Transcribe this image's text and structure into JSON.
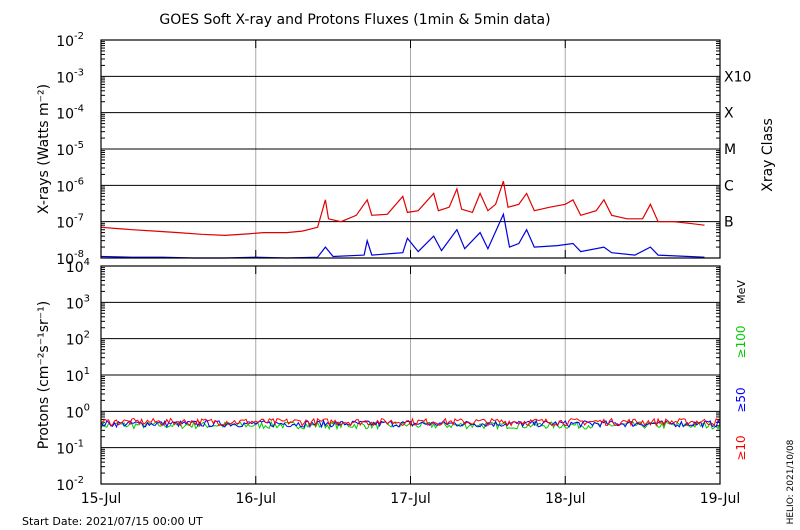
{
  "title": "GOES Soft X-ray and Protons Fluxes   (1min & 5min data)",
  "start_date": "Start Date: 2021/07/15 00:00 UT",
  "helio_stamp": "HELIO: 2021/10/08",
  "colors": {
    "xray_long": "#e00000",
    "xray_short": "#0000dd",
    "p10": "#ff0000",
    "p50": "#0000ff",
    "p100": "#00cc00",
    "grid_day": "#aaaaaa",
    "axis": "#000000"
  },
  "chart_data": [
    {
      "type": "line",
      "panel": "xray",
      "ylabel": "X-rays (Watts m⁻²)",
      "yscale": "log",
      "ylim": [
        1e-08,
        0.01
      ],
      "yticks": [
        {
          "exp": -8
        },
        {
          "exp": -7
        },
        {
          "exp": -6
        },
        {
          "exp": -5
        },
        {
          "exp": -4
        },
        {
          "exp": -3
        },
        {
          "exp": -2
        }
      ],
      "x_ticks": [
        "15-Jul",
        "16-Jul",
        "17-Jul",
        "18-Jul",
        "19-Jul"
      ],
      "xlim_days": [
        0,
        4
      ],
      "right_axis_title": "Xray Class",
      "class_labels": [
        {
          "label": "B",
          "value": 1e-07
        },
        {
          "label": "C",
          "value": 1e-06
        },
        {
          "label": "M",
          "value": 1e-05
        },
        {
          "label": "X",
          "value": 0.0001
        },
        {
          "label": "X10",
          "value": 0.001
        }
      ],
      "series": [
        {
          "color_key": "xray_long",
          "points": [
            [
              0.0,
              7e-08
            ],
            [
              0.1,
              6.5e-08
            ],
            [
              0.2,
              6e-08
            ],
            [
              0.35,
              5.5e-08
            ],
            [
              0.5,
              5e-08
            ],
            [
              0.65,
              4.5e-08
            ],
            [
              0.8,
              4.2e-08
            ],
            [
              0.95,
              4.6e-08
            ],
            [
              1.05,
              5e-08
            ],
            [
              1.2,
              5e-08
            ],
            [
              1.3,
              5.5e-08
            ],
            [
              1.4,
              7e-08
            ],
            [
              1.45,
              4e-07
            ],
            [
              1.47,
              1.2e-07
            ],
            [
              1.55,
              1e-07
            ],
            [
              1.65,
              1.5e-07
            ],
            [
              1.72,
              4e-07
            ],
            [
              1.75,
              1.5e-07
            ],
            [
              1.85,
              1.6e-07
            ],
            [
              1.95,
              5e-07
            ],
            [
              1.98,
              1.8e-07
            ],
            [
              2.05,
              2e-07
            ],
            [
              2.15,
              6e-07
            ],
            [
              2.18,
              2e-07
            ],
            [
              2.25,
              2.5e-07
            ],
            [
              2.3,
              8e-07
            ],
            [
              2.33,
              2.2e-07
            ],
            [
              2.4,
              1.8e-07
            ],
            [
              2.45,
              6e-07
            ],
            [
              2.5,
              2e-07
            ],
            [
              2.55,
              3e-07
            ],
            [
              2.6,
              1.3e-06
            ],
            [
              2.63,
              2.5e-07
            ],
            [
              2.7,
              3e-07
            ],
            [
              2.75,
              6e-07
            ],
            [
              2.8,
              2e-07
            ],
            [
              2.9,
              2.5e-07
            ],
            [
              3.0,
              3e-07
            ],
            [
              3.05,
              4e-07
            ],
            [
              3.1,
              1.5e-07
            ],
            [
              3.2,
              2e-07
            ],
            [
              3.25,
              4e-07
            ],
            [
              3.3,
              1.5e-07
            ],
            [
              3.4,
              1.2e-07
            ],
            [
              3.5,
              1.2e-07
            ],
            [
              3.55,
              3e-07
            ],
            [
              3.6,
              1e-07
            ],
            [
              3.7,
              1e-07
            ],
            [
              3.8,
              9e-08
            ],
            [
              3.9,
              8e-08
            ]
          ]
        },
        {
          "color_key": "xray_short",
          "points": [
            [
              0.0,
              1.1e-08
            ],
            [
              0.2,
              1.05e-08
            ],
            [
              0.4,
              1.05e-08
            ],
            [
              0.6,
              1e-08
            ],
            [
              0.8,
              1e-08
            ],
            [
              1.0,
              1.05e-08
            ],
            [
              1.2,
              1e-08
            ],
            [
              1.4,
              1.05e-08
            ],
            [
              1.45,
              2e-08
            ],
            [
              1.5,
              1.1e-08
            ],
            [
              1.7,
              1.2e-08
            ],
            [
              1.72,
              3e-08
            ],
            [
              1.75,
              1.2e-08
            ],
            [
              1.95,
              1.4e-08
            ],
            [
              1.98,
              3.5e-08
            ],
            [
              2.05,
              1.5e-08
            ],
            [
              2.15,
              4e-08
            ],
            [
              2.2,
              1.6e-08
            ],
            [
              2.3,
              6e-08
            ],
            [
              2.35,
              1.8e-08
            ],
            [
              2.45,
              5e-08
            ],
            [
              2.5,
              1.8e-08
            ],
            [
              2.6,
              1.6e-07
            ],
            [
              2.64,
              2e-08
            ],
            [
              2.7,
              2.5e-08
            ],
            [
              2.75,
              6e-08
            ],
            [
              2.8,
              2e-08
            ],
            [
              2.95,
              2.2e-08
            ],
            [
              3.05,
              2.5e-08
            ],
            [
              3.1,
              1.5e-08
            ],
            [
              3.25,
              2e-08
            ],
            [
              3.3,
              1.4e-08
            ],
            [
              3.45,
              1.2e-08
            ],
            [
              3.55,
              2e-08
            ],
            [
              3.6,
              1.2e-08
            ],
            [
              3.8,
              1.1e-08
            ],
            [
              3.9,
              1.05e-08
            ]
          ]
        }
      ]
    },
    {
      "type": "line",
      "panel": "protons",
      "ylabel": "Protons (cm⁻²s⁻¹sr⁻¹)",
      "yscale": "log",
      "ylim": [
        0.01,
        10000
      ],
      "yticks": [
        {
          "exp": -2
        },
        {
          "exp": -1
        },
        {
          "exp": 0
        },
        {
          "exp": 1
        },
        {
          "exp": 2
        },
        {
          "exp": 3
        },
        {
          "exp": 4
        }
      ],
      "x_ticks": [
        "15-Jul",
        "16-Jul",
        "17-Jul",
        "18-Jul",
        "19-Jul"
      ],
      "xlim_days": [
        0,
        4
      ],
      "threshold_dashed": 10,
      "right_axis_unit": "MeV",
      "legend": [
        {
          "label": "≥10",
          "color_key": "p10"
        },
        {
          "label": "≥50",
          "color_key": "p50"
        },
        {
          "label": "≥100",
          "color_key": "p100"
        }
      ],
      "series": [
        {
          "color_key": "p100",
          "level": 0.42,
          "spread": 0.22
        },
        {
          "color_key": "p50",
          "level": 0.46,
          "spread": 0.2
        },
        {
          "color_key": "p10",
          "level": 0.52,
          "spread": 0.22
        }
      ]
    }
  ]
}
